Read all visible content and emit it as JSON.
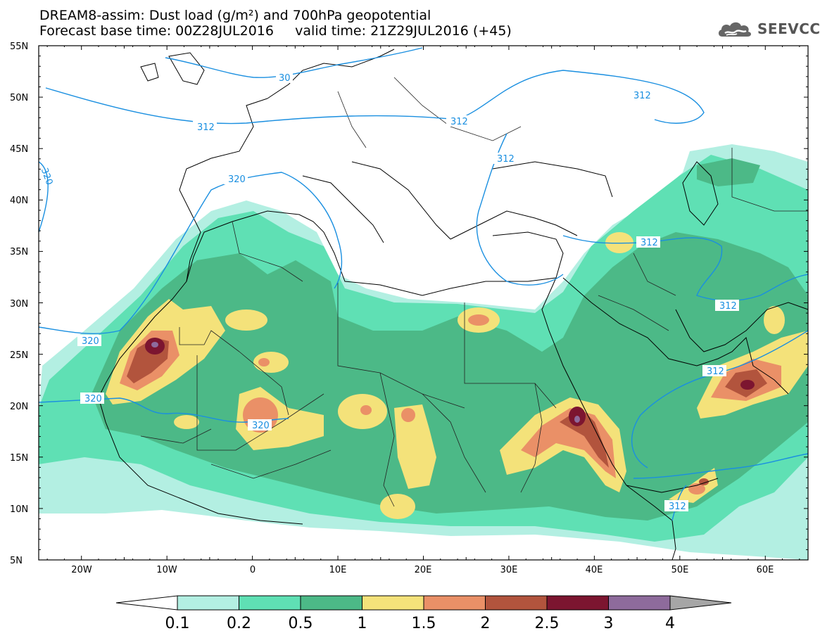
{
  "title_line1": "DREAM8-assim: Dust load (g/m²) and 700hPa geopotential",
  "title_line2": "Forecast base time: 00Z28JUL2016     valid time: 21Z29JUL2016 (+45)",
  "logo": {
    "text": "SEEVCCC",
    "icon": "cloud-icon"
  },
  "map": {
    "lon_range": [
      -25,
      65
    ],
    "lat_range": [
      5,
      55
    ],
    "lat_ticks": [
      "5N",
      "10N",
      "15N",
      "20N",
      "25N",
      "30N",
      "35N",
      "40N",
      "45N",
      "50N",
      "55N"
    ],
    "lon_ticks": [
      "20W",
      "10W",
      "0",
      "10E",
      "20E",
      "30E",
      "40E",
      "50E",
      "60E"
    ],
    "contour_color": "#1a8fe0",
    "contour_labels": [
      "312",
      "312",
      "312",
      "312",
      "312",
      "312",
      "312",
      "312",
      "320",
      "320",
      "320",
      "320",
      "320",
      "30"
    ]
  },
  "colorbar": {
    "labels": [
      "0.1",
      "0.2",
      "0.5",
      "1",
      "1.5",
      "2",
      "2.5",
      "3",
      "4"
    ],
    "colors": [
      "#b3efe2",
      "#5fe0b4",
      "#4cb987",
      "#f4e27a",
      "#ea9067",
      "#b2543d",
      "#7c1530",
      "#8e6b9c"
    ],
    "under_color": "#ffffff",
    "over_color": "#a6a6a6"
  }
}
